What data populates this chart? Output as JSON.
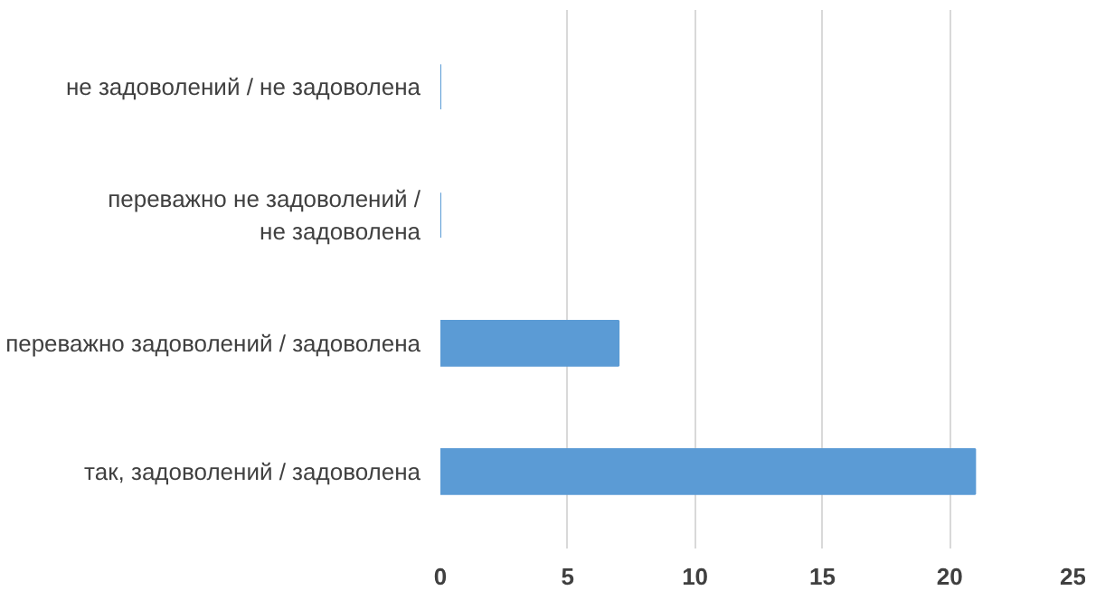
{
  "chart_data": {
    "type": "bar",
    "orientation": "horizontal",
    "categories": [
      "не задоволений / не задоволена",
      "переважно не задоволений / не задоволена",
      "переважно задоволений / задоволена",
      "так, задоволений / задоволена"
    ],
    "values": [
      0,
      0,
      7,
      21
    ],
    "color": "#5b9bd5",
    "xlim": [
      0,
      25
    ],
    "xticks": [
      0,
      5,
      10,
      15,
      20,
      25
    ],
    "grid": "x"
  }
}
